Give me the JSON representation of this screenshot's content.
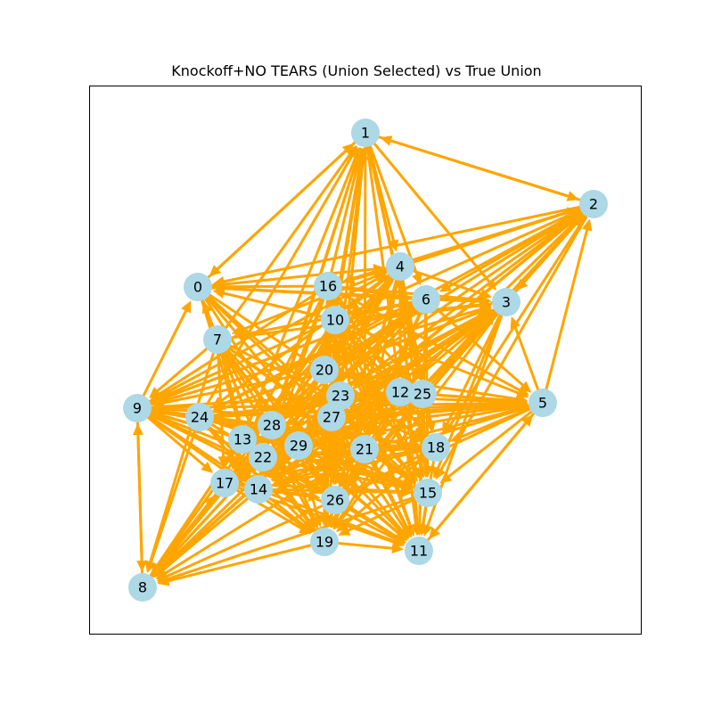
{
  "title": "Knockoff+NO TEARS (Union Selected) vs True Union",
  "colors": {
    "edge": "#FFA500",
    "node": "#ADD8E6",
    "text": "#000000",
    "frame": "#000000"
  },
  "nodes": [
    {
      "id": "0"
    },
    {
      "id": "1"
    },
    {
      "id": "2"
    },
    {
      "id": "3"
    },
    {
      "id": "4"
    },
    {
      "id": "5"
    },
    {
      "id": "6"
    },
    {
      "id": "7"
    },
    {
      "id": "8"
    },
    {
      "id": "9"
    },
    {
      "id": "10"
    },
    {
      "id": "11"
    },
    {
      "id": "12"
    },
    {
      "id": "13"
    },
    {
      "id": "14"
    },
    {
      "id": "15"
    },
    {
      "id": "16"
    },
    {
      "id": "17"
    },
    {
      "id": "18"
    },
    {
      "id": "19"
    },
    {
      "id": "20"
    },
    {
      "id": "21"
    },
    {
      "id": "22"
    },
    {
      "id": "23"
    },
    {
      "id": "24"
    },
    {
      "id": "25"
    },
    {
      "id": "26"
    },
    {
      "id": "27"
    },
    {
      "id": "28"
    },
    {
      "id": "29"
    }
  ],
  "edges": [
    [
      "1",
      "2"
    ],
    [
      "2",
      "1"
    ],
    [
      "1",
      "0"
    ],
    [
      "0",
      "1"
    ],
    [
      "9",
      "8"
    ],
    [
      "8",
      "9"
    ],
    [
      "9",
      "0"
    ],
    [
      "5",
      "2"
    ],
    [
      "2",
      "3"
    ],
    [
      "5",
      "3"
    ],
    [
      "11",
      "5"
    ],
    [
      "16",
      "1"
    ],
    [
      "10",
      "1"
    ],
    [
      "20",
      "1"
    ],
    [
      "23",
      "1"
    ],
    [
      "27",
      "1"
    ],
    [
      "28",
      "1"
    ],
    [
      "13",
      "1"
    ],
    [
      "22",
      "1"
    ],
    [
      "1",
      "4"
    ],
    [
      "1",
      "6"
    ],
    [
      "1",
      "12"
    ],
    [
      "1",
      "25"
    ],
    [
      "1",
      "21"
    ],
    [
      "1",
      "18"
    ],
    [
      "1",
      "3"
    ],
    [
      "7",
      "1"
    ],
    [
      "24",
      "1"
    ],
    [
      "0",
      "4"
    ],
    [
      "0",
      "6"
    ],
    [
      "0",
      "3"
    ],
    [
      "0",
      "21"
    ],
    [
      "0",
      "15"
    ],
    [
      "0",
      "11"
    ],
    [
      "0",
      "26"
    ],
    [
      "0",
      "18"
    ],
    [
      "0",
      "27"
    ],
    [
      "0",
      "22"
    ],
    [
      "0",
      "14"
    ],
    [
      "16",
      "0"
    ],
    [
      "6",
      "0"
    ],
    [
      "10",
      "0"
    ],
    [
      "7",
      "0"
    ],
    [
      "2",
      "0"
    ],
    [
      "2",
      "16"
    ],
    [
      "2",
      "6"
    ],
    [
      "2",
      "10"
    ],
    [
      "2",
      "20"
    ],
    [
      "2",
      "23"
    ],
    [
      "2",
      "12"
    ],
    [
      "2",
      "27"
    ],
    [
      "2",
      "21"
    ],
    [
      "2",
      "18"
    ],
    [
      "2",
      "15"
    ],
    [
      "2",
      "29"
    ],
    [
      "2",
      "28"
    ],
    [
      "2",
      "24"
    ],
    [
      "4",
      "2"
    ],
    [
      "3",
      "2"
    ],
    [
      "9",
      "4"
    ],
    [
      "9",
      "6"
    ],
    [
      "9",
      "5"
    ],
    [
      "9",
      "21"
    ],
    [
      "9",
      "18"
    ],
    [
      "9",
      "15"
    ],
    [
      "9",
      "11"
    ],
    [
      "9",
      "22"
    ],
    [
      "9",
      "14"
    ],
    [
      "9",
      "19"
    ],
    [
      "9",
      "26"
    ],
    [
      "9",
      "3"
    ],
    [
      "9",
      "12"
    ],
    [
      "7",
      "9"
    ],
    [
      "10",
      "9"
    ],
    [
      "20",
      "9"
    ],
    [
      "23",
      "9"
    ],
    [
      "27",
      "9"
    ],
    [
      "28",
      "9"
    ],
    [
      "24",
      "9"
    ],
    [
      "13",
      "9"
    ],
    [
      "16",
      "9"
    ],
    [
      "6",
      "9"
    ],
    [
      "8",
      "17"
    ],
    [
      "8",
      "22"
    ],
    [
      "8",
      "13"
    ],
    [
      "8",
      "28"
    ],
    [
      "14",
      "8"
    ],
    [
      "19",
      "8"
    ],
    [
      "26",
      "8"
    ],
    [
      "29",
      "8"
    ],
    [
      "21",
      "8"
    ],
    [
      "22",
      "8"
    ],
    [
      "17",
      "8"
    ],
    [
      "13",
      "8"
    ],
    [
      "24",
      "8"
    ],
    [
      "28",
      "8"
    ],
    [
      "27",
      "8"
    ],
    [
      "20",
      "8"
    ],
    [
      "23",
      "8"
    ],
    [
      "10",
      "8"
    ],
    [
      "7",
      "8"
    ],
    [
      "15",
      "8"
    ],
    [
      "5",
      "11"
    ],
    [
      "5",
      "15"
    ],
    [
      "5",
      "21"
    ],
    [
      "5",
      "18"
    ],
    [
      "5",
      "26"
    ],
    [
      "5",
      "29"
    ],
    [
      "5",
      "14"
    ],
    [
      "12",
      "5"
    ],
    [
      "25",
      "5"
    ],
    [
      "23",
      "5"
    ],
    [
      "27",
      "5"
    ],
    [
      "20",
      "5"
    ],
    [
      "16",
      "5"
    ],
    [
      "10",
      "5"
    ],
    [
      "6",
      "5"
    ],
    [
      "24",
      "5"
    ],
    [
      "13",
      "5"
    ],
    [
      "28",
      "5"
    ],
    [
      "3",
      "11"
    ],
    [
      "3",
      "15"
    ],
    [
      "3",
      "18"
    ],
    [
      "3",
      "21"
    ],
    [
      "3",
      "26"
    ],
    [
      "3",
      "29"
    ],
    [
      "3",
      "19"
    ],
    [
      "3",
      "22"
    ],
    [
      "3",
      "14"
    ],
    [
      "16",
      "3"
    ],
    [
      "10",
      "3"
    ],
    [
      "20",
      "3"
    ],
    [
      "23",
      "3"
    ],
    [
      "27",
      "3"
    ],
    [
      "13",
      "3"
    ],
    [
      "28",
      "3"
    ],
    [
      "24",
      "3"
    ],
    [
      "7",
      "3"
    ],
    [
      "4",
      "3"
    ],
    [
      "6",
      "3"
    ],
    [
      "12",
      "3"
    ],
    [
      "25",
      "3"
    ],
    [
      "4",
      "16"
    ],
    [
      "4",
      "10"
    ],
    [
      "4",
      "20"
    ],
    [
      "4",
      "13"
    ],
    [
      "4",
      "22"
    ],
    [
      "4",
      "14"
    ],
    [
      "4",
      "24"
    ],
    [
      "4",
      "7"
    ],
    [
      "4",
      "28"
    ],
    [
      "4",
      "29"
    ],
    [
      "4",
      "26"
    ],
    [
      "4",
      "19"
    ],
    [
      "6",
      "7"
    ],
    [
      "6",
      "10"
    ],
    [
      "6",
      "20"
    ],
    [
      "6",
      "24"
    ],
    [
      "6",
      "13"
    ],
    [
      "6",
      "22"
    ],
    [
      "6",
      "14"
    ],
    [
      "6",
      "17"
    ],
    [
      "6",
      "19"
    ],
    [
      "6",
      "26"
    ],
    [
      "6",
      "11"
    ],
    [
      "6",
      "15"
    ],
    [
      "6",
      "21"
    ],
    [
      "6",
      "28"
    ],
    [
      "6",
      "29"
    ],
    [
      "16",
      "6"
    ],
    [
      "16",
      "4"
    ],
    [
      "16",
      "11"
    ],
    [
      "16",
      "15"
    ],
    [
      "16",
      "19"
    ],
    [
      "16",
      "26"
    ],
    [
      "16",
      "21"
    ],
    [
      "16",
      "17"
    ],
    [
      "16",
      "14"
    ],
    [
      "16",
      "22"
    ],
    [
      "10",
      "11"
    ],
    [
      "10",
      "15"
    ],
    [
      "10",
      "19"
    ],
    [
      "10",
      "26"
    ],
    [
      "10",
      "14"
    ],
    [
      "10",
      "17"
    ],
    [
      "10",
      "22"
    ],
    [
      "10",
      "21"
    ],
    [
      "10",
      "18"
    ],
    [
      "7",
      "11"
    ],
    [
      "7",
      "15"
    ],
    [
      "7",
      "19"
    ],
    [
      "7",
      "26"
    ],
    [
      "7",
      "21"
    ],
    [
      "7",
      "18"
    ],
    [
      "7",
      "22"
    ],
    [
      "7",
      "14"
    ],
    [
      "7",
      "17"
    ],
    [
      "7",
      "29"
    ],
    [
      "7",
      "28"
    ],
    [
      "20",
      "11"
    ],
    [
      "20",
      "19"
    ],
    [
      "20",
      "15"
    ],
    [
      "20",
      "14"
    ],
    [
      "20",
      "17"
    ],
    [
      "20",
      "18"
    ],
    [
      "20",
      "26"
    ],
    [
      "23",
      "11"
    ],
    [
      "23",
      "19"
    ],
    [
      "23",
      "15"
    ],
    [
      "23",
      "17"
    ],
    [
      "23",
      "14"
    ],
    [
      "23",
      "26"
    ],
    [
      "27",
      "11"
    ],
    [
      "27",
      "19"
    ],
    [
      "27",
      "17"
    ],
    [
      "27",
      "14"
    ],
    [
      "27",
      "15"
    ],
    [
      "24",
      "11"
    ],
    [
      "24",
      "19"
    ],
    [
      "24",
      "15"
    ],
    [
      "24",
      "26"
    ],
    [
      "24",
      "18"
    ],
    [
      "24",
      "12"
    ],
    [
      "24",
      "25"
    ],
    [
      "24",
      "21"
    ],
    [
      "24",
      "14"
    ],
    [
      "12",
      "19"
    ],
    [
      "12",
      "17"
    ],
    [
      "12",
      "14"
    ],
    [
      "12",
      "11"
    ],
    [
      "12",
      "15"
    ],
    [
      "12",
      "22"
    ],
    [
      "12",
      "26"
    ],
    [
      "25",
      "19"
    ],
    [
      "25",
      "14"
    ],
    [
      "25",
      "11"
    ],
    [
      "25",
      "15"
    ],
    [
      "25",
      "17"
    ],
    [
      "25",
      "26"
    ],
    [
      "13",
      "11"
    ],
    [
      "13",
      "15"
    ],
    [
      "13",
      "18"
    ],
    [
      "13",
      "26"
    ],
    [
      "13",
      "19"
    ],
    [
      "13",
      "21"
    ],
    [
      "28",
      "11"
    ],
    [
      "28",
      "15"
    ],
    [
      "28",
      "18"
    ],
    [
      "28",
      "26"
    ],
    [
      "28",
      "19"
    ],
    [
      "28",
      "21"
    ],
    [
      "22",
      "11"
    ],
    [
      "22",
      "19"
    ],
    [
      "22",
      "15"
    ],
    [
      "22",
      "21"
    ],
    [
      "22",
      "18"
    ],
    [
      "22",
      "26"
    ],
    [
      "29",
      "11"
    ],
    [
      "29",
      "19"
    ],
    [
      "29",
      "15"
    ],
    [
      "29",
      "18"
    ],
    [
      "21",
      "11"
    ],
    [
      "21",
      "19"
    ],
    [
      "21",
      "17"
    ],
    [
      "21",
      "14"
    ],
    [
      "21",
      "15"
    ],
    [
      "18",
      "19"
    ],
    [
      "18",
      "17"
    ],
    [
      "18",
      "14"
    ],
    [
      "18",
      "11"
    ],
    [
      "18",
      "26"
    ],
    [
      "15",
      "19"
    ],
    [
      "15",
      "14"
    ],
    [
      "15",
      "11"
    ],
    [
      "26",
      "11"
    ],
    [
      "26",
      "19"
    ],
    [
      "19",
      "11"
    ],
    [
      "14",
      "19"
    ],
    [
      "14",
      "26"
    ],
    [
      "17",
      "19"
    ],
    [
      "17",
      "26"
    ],
    [
      "4",
      "11"
    ],
    [
      "4",
      "15"
    ],
    [
      "4",
      "18"
    ],
    [
      "4",
      "21"
    ],
    [
      "4",
      "12"
    ],
    [
      "4",
      "25"
    ],
    [
      "14",
      "11"
    ],
    [
      "14",
      "15"
    ],
    [
      "17",
      "15"
    ],
    [
      "17",
      "11"
    ],
    [
      "9",
      "17"
    ],
    [
      "20",
      "21"
    ],
    [
      "20",
      "12"
    ],
    [
      "20",
      "25"
    ],
    [
      "23",
      "12"
    ],
    [
      "23",
      "25"
    ],
    [
      "27",
      "12"
    ],
    [
      "27",
      "25"
    ],
    [
      "27",
      "21"
    ],
    [
      "16",
      "12"
    ],
    [
      "16",
      "25"
    ],
    [
      "10",
      "12"
    ],
    [
      "10",
      "25"
    ],
    [
      "16",
      "20"
    ],
    [
      "16",
      "23"
    ],
    [
      "10",
      "20"
    ],
    [
      "10",
      "23"
    ]
  ]
}
